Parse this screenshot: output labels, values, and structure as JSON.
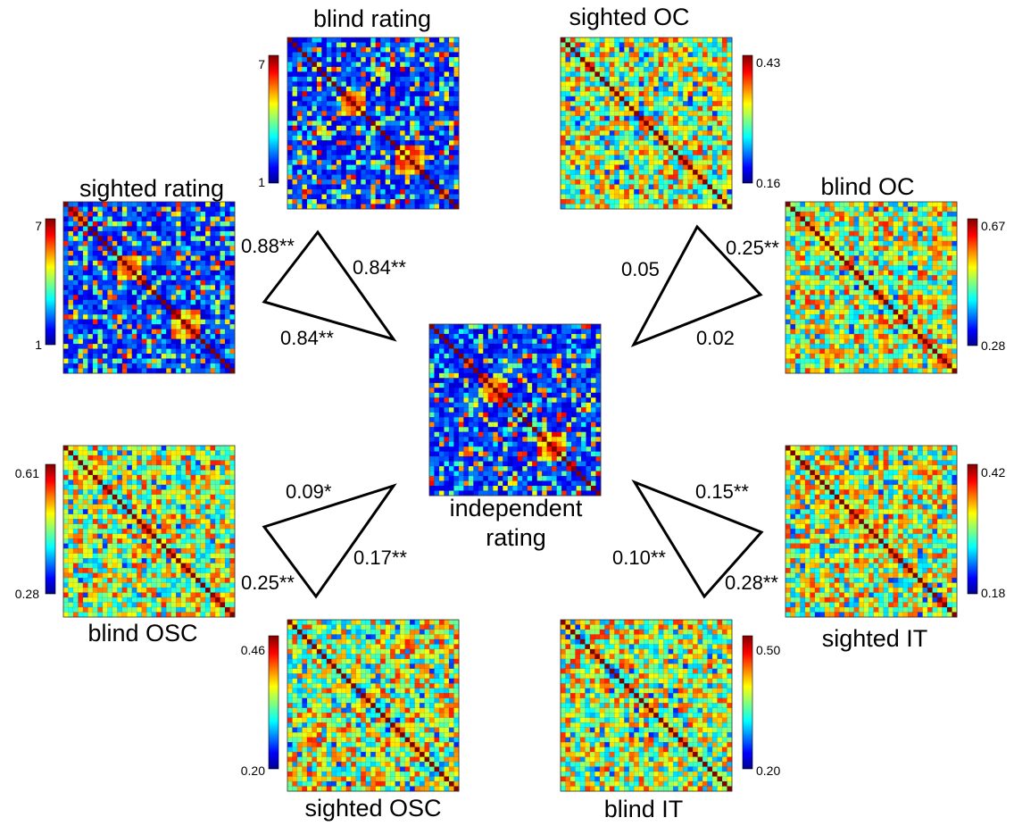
{
  "chart_data": {
    "type": "heatmap",
    "matrix_size": 35,
    "colormap": "jet",
    "matrices": [
      {
        "id": "blind-rating",
        "title": "blind rating",
        "clim": [
          1,
          7
        ],
        "tick_labels": [
          "7",
          "1"
        ],
        "kind": "rating"
      },
      {
        "id": "sighted-oc",
        "title": "sighted OC",
        "clim": [
          0.16,
          0.43
        ],
        "tick_labels": [
          "0.43",
          "0.16"
        ],
        "kind": "neural"
      },
      {
        "id": "sighted-rating",
        "title": "sighted rating",
        "clim": [
          1,
          7
        ],
        "tick_labels": [
          "7",
          "1"
        ],
        "kind": "rating"
      },
      {
        "id": "blind-oc",
        "title": "blind OC",
        "clim": [
          0.28,
          0.67
        ],
        "tick_labels": [
          "0.67",
          "0.28"
        ],
        "kind": "neural"
      },
      {
        "id": "independent-rating",
        "title": "independent rating",
        "title_lines": [
          "independent",
          "rating"
        ],
        "kind": "rating"
      },
      {
        "id": "blind-osc",
        "title": "blind OSC",
        "clim": [
          0.28,
          0.61
        ],
        "tick_labels": [
          "0.61",
          "0.28"
        ],
        "kind": "neural"
      },
      {
        "id": "sighted-it",
        "title": "sighted IT",
        "clim": [
          0.18,
          0.42
        ],
        "tick_labels": [
          "0.42",
          "0.18"
        ],
        "kind": "neural"
      },
      {
        "id": "sighted-osc",
        "title": "sighted OSC",
        "clim": [
          0.2,
          0.46
        ],
        "tick_labels": [
          "0.46",
          "0.20"
        ],
        "kind": "neural"
      },
      {
        "id": "blind-it",
        "title": "blind IT",
        "clim": [
          0.2,
          0.5
        ],
        "tick_labels": [
          "0.50",
          "0.20"
        ],
        "kind": "neural"
      }
    ],
    "correlations": [
      {
        "group": "rating",
        "pair": [
          "sighted rating",
          "blind rating"
        ],
        "value": "0.88**"
      },
      {
        "group": "rating",
        "pair": [
          "blind rating",
          "independent rating"
        ],
        "value": "0.84**"
      },
      {
        "group": "rating",
        "pair": [
          "sighted rating",
          "independent rating"
        ],
        "value": "0.84**"
      },
      {
        "group": "OC",
        "pair": [
          "sighted OC",
          "independent rating"
        ],
        "value": "0.05"
      },
      {
        "group": "OC",
        "pair": [
          "sighted OC",
          "blind OC"
        ],
        "value": "0.25**"
      },
      {
        "group": "OC",
        "pair": [
          "blind OC",
          "independent rating"
        ],
        "value": "0.02"
      },
      {
        "group": "OSC",
        "pair": [
          "blind OSC",
          "independent rating"
        ],
        "value": "0.09*"
      },
      {
        "group": "OSC",
        "pair": [
          "sighted OSC",
          "independent rating"
        ],
        "value": "0.17**"
      },
      {
        "group": "OSC",
        "pair": [
          "blind OSC",
          "sighted OSC"
        ],
        "value": "0.25**"
      },
      {
        "group": "IT",
        "pair": [
          "sighted IT",
          "independent rating"
        ],
        "value": "0.15**"
      },
      {
        "group": "IT",
        "pair": [
          "blind IT",
          "independent rating"
        ],
        "value": "0.10**"
      },
      {
        "group": "IT",
        "pair": [
          "sighted IT",
          "blind IT"
        ],
        "value": "0.28**"
      }
    ]
  }
}
